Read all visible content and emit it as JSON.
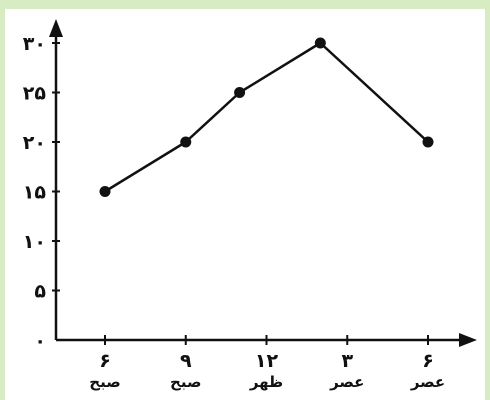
{
  "chart_data": {
    "type": "line",
    "title": "",
    "xlabel": "",
    "ylabel": "",
    "categories": [
      {
        "top": "۶",
        "bottom": "صبح"
      },
      {
        "top": "۹",
        "bottom": "صبح"
      },
      {
        "top": "۱۲",
        "bottom": "ظهر"
      },
      {
        "top": "۳",
        "bottom": "عصر"
      },
      {
        "top": "۶",
        "bottom": "عصر"
      }
    ],
    "y_ticks": [
      {
        "value": 0,
        "label": "۰"
      },
      {
        "value": 5,
        "label": "۵"
      },
      {
        "value": 10,
        "label": "۱۰"
      },
      {
        "value": 15,
        "label": "۱۵"
      },
      {
        "value": 20,
        "label": "۲۰"
      },
      {
        "value": 25,
        "label": "۲۵"
      },
      {
        "value": 30,
        "label": "۳۰"
      }
    ],
    "ylim": [
      0,
      30
    ],
    "grid": false,
    "series": [
      {
        "points": [
          {
            "x": 6,
            "y": 15
          },
          {
            "x": 9,
            "y": 20
          },
          {
            "x": 11,
            "y": 25
          },
          {
            "x": 14,
            "y": 30
          },
          {
            "x": 18,
            "y": 20
          }
        ]
      }
    ],
    "colors": {
      "line": "#111111",
      "marker": "#111111",
      "axis": "#111111"
    }
  }
}
